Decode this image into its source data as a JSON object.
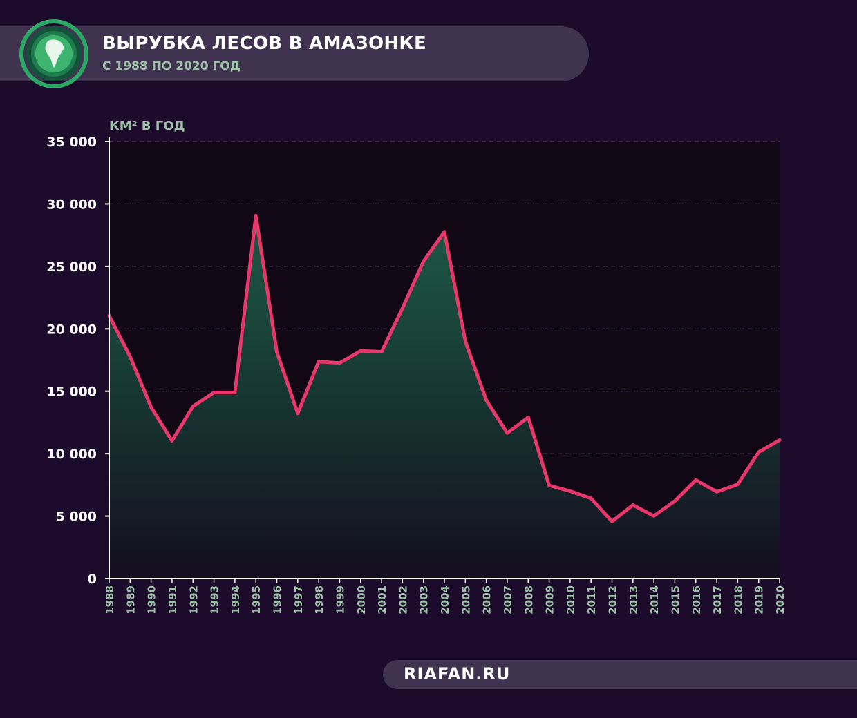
{
  "header": {
    "title": "ВЫРУБКА ЛЕСОВ В АМАЗОНКЕ",
    "subtitle": "С 1988 ПО 2020 ГОД",
    "logo_icon": "globe-south-america-icon"
  },
  "footer": {
    "source": "RIAFAN.RU"
  },
  "colors": {
    "background": "#1c0b2b",
    "banner": "#40334f",
    "line": "#e8386b",
    "fill_top": "#1b4a3e",
    "accent_green": "#3fbf72",
    "axis_label": "#9ec2a8"
  },
  "chart_data": {
    "type": "area",
    "title": "ВЫРУБКА ЛЕСОВ В АМАЗОНКЕ",
    "subtitle": "С 1988 ПО 2020 ГОД",
    "ylabel": "КМ² В ГОД",
    "xlabel": "",
    "ylim": [
      0,
      35000
    ],
    "yticks": [
      0,
      5000,
      10000,
      15000,
      20000,
      25000,
      30000,
      35000
    ],
    "ytick_labels": [
      "0",
      "5 000",
      "10 000",
      "15 000",
      "20 000",
      "25 000",
      "30 000",
      "35 000"
    ],
    "grid": true,
    "x": [
      "1988",
      "1989",
      "1990",
      "1991",
      "1992",
      "1993",
      "1994",
      "1995",
      "1996",
      "1997",
      "1998",
      "1999",
      "2000",
      "2001",
      "2002",
      "2003",
      "2004",
      "2005",
      "2006",
      "2007",
      "2008",
      "2009",
      "2010",
      "2011",
      "2012",
      "2013",
      "2014",
      "2015",
      "2016",
      "2017",
      "2018",
      "2019",
      "2020"
    ],
    "series": [
      {
        "values": [
          21050,
          17770,
          13730,
          11030,
          13790,
          14900,
          14900,
          29060,
          18160,
          13230,
          17380,
          17260,
          18230,
          18170,
          21650,
          25400,
          27770,
          19010,
          14290,
          11650,
          12910,
          7460,
          7000,
          6420,
          4570,
          5890,
          5010,
          6210,
          7890,
          6950,
          7540,
          10130,
          11090
        ]
      }
    ]
  }
}
